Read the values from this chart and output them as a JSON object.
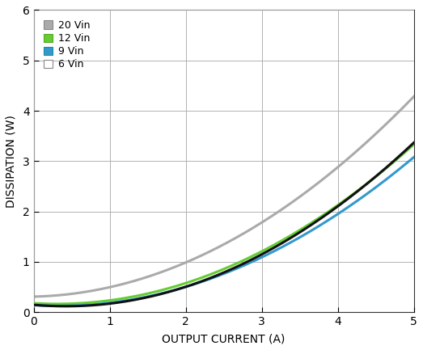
{
  "xlabel": "OUTPUT CURRENT (A)",
  "ylabel": "DISSIPATION (W)",
  "xlim": [
    0,
    5
  ],
  "ylim": [
    0,
    6
  ],
  "xticks": [
    0,
    1,
    2,
    3,
    4,
    5
  ],
  "yticks": [
    0,
    1,
    2,
    3,
    4,
    5,
    6
  ],
  "series": [
    {
      "label": "20 Vin",
      "color": "#aaaaaa",
      "linewidth": 2.2,
      "zorder": 2,
      "I": [
        0,
        0.5,
        1.0,
        1.5,
        2.0,
        2.5,
        3.0,
        3.5,
        4.0,
        4.5,
        5.0
      ],
      "P": [
        0.3,
        0.36,
        0.5,
        0.72,
        1.0,
        1.35,
        1.78,
        2.28,
        2.85,
        3.55,
        4.3
      ]
    },
    {
      "label": "12 Vin",
      "color": "#66cc33",
      "linewidth": 2.2,
      "zorder": 3,
      "I": [
        0,
        0.5,
        1.0,
        1.5,
        2.0,
        2.5,
        3.0,
        3.5,
        4.0,
        4.5,
        5.0
      ],
      "P": [
        0.15,
        0.17,
        0.25,
        0.4,
        0.6,
        0.87,
        1.2,
        1.6,
        2.08,
        2.68,
        3.38
      ]
    },
    {
      "label": "9 Vin",
      "color": "#3399cc",
      "linewidth": 2.2,
      "zorder": 4,
      "I": [
        0,
        0.5,
        1.0,
        1.5,
        2.0,
        2.5,
        3.0,
        3.5,
        4.0,
        4.5,
        5.0
      ],
      "P": [
        0.12,
        0.13,
        0.2,
        0.33,
        0.52,
        0.76,
        1.08,
        1.47,
        1.93,
        2.48,
        3.1
      ]
    },
    {
      "label": "6 Vin",
      "color": "#111111",
      "linewidth": 2.2,
      "zorder": 5,
      "I": [
        0,
        0.5,
        1.0,
        1.5,
        2.0,
        2.5,
        3.0,
        3.5,
        4.0,
        4.5,
        5.0
      ],
      "P": [
        0.1,
        0.12,
        0.2,
        0.34,
        0.54,
        0.8,
        1.13,
        1.55,
        2.05,
        2.65,
        3.45
      ]
    }
  ],
  "legend_marker_colors": [
    "#aaaaaa",
    "#66cc33",
    "#3399cc",
    "#ffffff"
  ],
  "legend_marker_edge": [
    "#888888",
    "#55aa22",
    "#2288aa",
    "#888888"
  ],
  "grid_color": "#aaaaaa",
  "background_color": "#ffffff",
  "tick_fontsize": 10,
  "label_fontsize": 10
}
